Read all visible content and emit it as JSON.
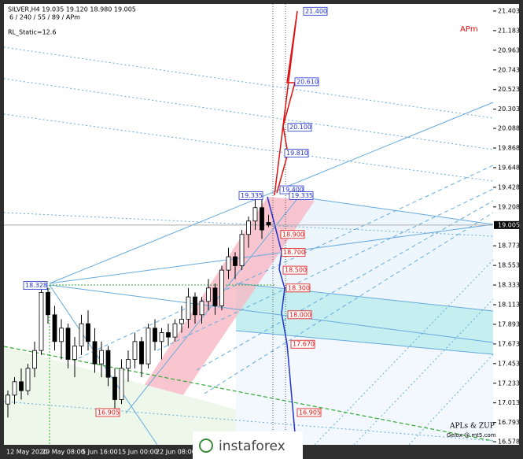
{
  "chart_data": {
    "type": "candlestick",
    "title": "SILVER,H4  19.035 19.120 18.980 19.005",
    "subtitle": "6 / 240 / 55 / 89 / APm",
    "indicator": "RL_Static=12.6",
    "corner_label": "APm",
    "footer": [
      "APLs & ZUP",
      "Gelox @ mt5.com"
    ],
    "brand": "instaforex",
    "x_labels": [
      "12 May 2020",
      "29 May 08:00",
      "5 Jun 16:00",
      "15 Jun 00:00",
      "22 Jun 08:00"
    ],
    "open": [
      17.0,
      17.1,
      17.25,
      17.15,
      17.4,
      17.6,
      18.25,
      18.0,
      17.7,
      17.85,
      17.5,
      17.65,
      17.9,
      17.7,
      17.45,
      17.6,
      17.3,
      17.05,
      17.4,
      17.5,
      17.7,
      17.45,
      17.85,
      17.7,
      17.8,
      17.75,
      17.9,
      17.95,
      18.2,
      18.0,
      18.15,
      18.3,
      18.1,
      18.5,
      18.65,
      18.55,
      18.9,
      19.05,
      19.2,
      19.035
    ],
    "high": [
      17.15,
      17.3,
      17.4,
      17.45,
      17.7,
      18.33,
      18.3,
      18.1,
      17.95,
      17.9,
      17.75,
      18.0,
      18.05,
      17.85,
      17.7,
      17.65,
      17.4,
      17.5,
      17.6,
      17.8,
      17.75,
      17.9,
      17.95,
      17.85,
      17.9,
      17.95,
      18.1,
      18.3,
      18.25,
      18.2,
      18.4,
      18.35,
      18.55,
      18.75,
      18.7,
      18.95,
      19.1,
      19.335,
      19.3,
      19.12
    ],
    "low": [
      16.85,
      17.0,
      17.05,
      17.1,
      17.3,
      17.55,
      17.9,
      17.6,
      17.5,
      17.4,
      17.3,
      17.55,
      17.6,
      17.35,
      17.3,
      17.2,
      16.9,
      17.0,
      17.25,
      17.4,
      17.3,
      17.4,
      17.6,
      17.5,
      17.65,
      17.7,
      17.8,
      17.85,
      17.9,
      17.9,
      18.05,
      18.0,
      18.05,
      18.4,
      18.4,
      18.5,
      18.75,
      18.95,
      18.85,
      18.98
    ],
    "close": [
      17.1,
      17.25,
      17.15,
      17.4,
      17.6,
      18.25,
      18.0,
      17.7,
      17.85,
      17.5,
      17.65,
      17.9,
      17.7,
      17.45,
      17.6,
      17.3,
      17.05,
      17.4,
      17.5,
      17.7,
      17.45,
      17.85,
      17.7,
      17.8,
      17.75,
      17.9,
      17.95,
      18.2,
      18.0,
      18.15,
      18.3,
      18.1,
      18.5,
      18.65,
      18.55,
      18.9,
      19.05,
      19.2,
      18.95,
      19.005
    ],
    "up_color": "#ffffff",
    "down_color": "#000000",
    "ylim": [
      16.543,
      21.482
    ],
    "yticks": [
      21.403,
      21.183,
      20.963,
      20.743,
      20.523,
      20.303,
      20.088,
      19.868,
      19.648,
      19.428,
      19.208,
      18.773,
      18.553,
      18.333,
      18.113,
      17.893,
      17.673,
      17.453,
      17.233,
      17.013,
      16.793,
      16.578
    ],
    "current_price": 19.005,
    "levels": [
      {
        "price": {
          "value": 21.4,
          "label": "21.400"
        },
        "color": "#2233cc"
      },
      {
        "price": {
          "value": 20.61,
          "label": "20.610"
        },
        "color": "#2233cc"
      },
      {
        "price": {
          "value": 20.1,
          "label": "20.100"
        },
        "color": "#2233cc"
      },
      {
        "price": {
          "value": 19.81,
          "label": "19.810"
        },
        "color": "#2233cc"
      },
      {
        "price": {
          "value": 19.4,
          "label": "19.400"
        },
        "color": "#2233cc"
      },
      {
        "price": 19.335,
        "color": "#2233cc"
      },
      {
        "price": 19.335,
        "color": "#2233cc"
      },
      {
        "price": 18.328,
        "color": "#2233cc"
      },
      {
        "price": {
          "value": 18.9,
          "label": "18.900"
        },
        "color": "#dd1111"
      },
      {
        "price": {
          "value": 18.7,
          "label": "18.700"
        },
        "color": "#dd1111"
      },
      {
        "price": {
          "value": 18.5,
          "label": "18.500"
        },
        "color": "#dd1111"
      },
      {
        "price": {
          "value": 18.3,
          "label": "18.300"
        },
        "color": "#dd1111"
      },
      {
        "price": {
          "value": 18,
          "label": "18.000"
        },
        "color": "#dd1111"
      },
      {
        "price": {
          "value": 17.67,
          "label": "17.670"
        },
        "color": "#dd1111"
      },
      {
        "price": 16.905,
        "color": "#dd1111"
      },
      {
        "price": 16.905,
        "color": "#dd1111"
      }
    ]
  }
}
